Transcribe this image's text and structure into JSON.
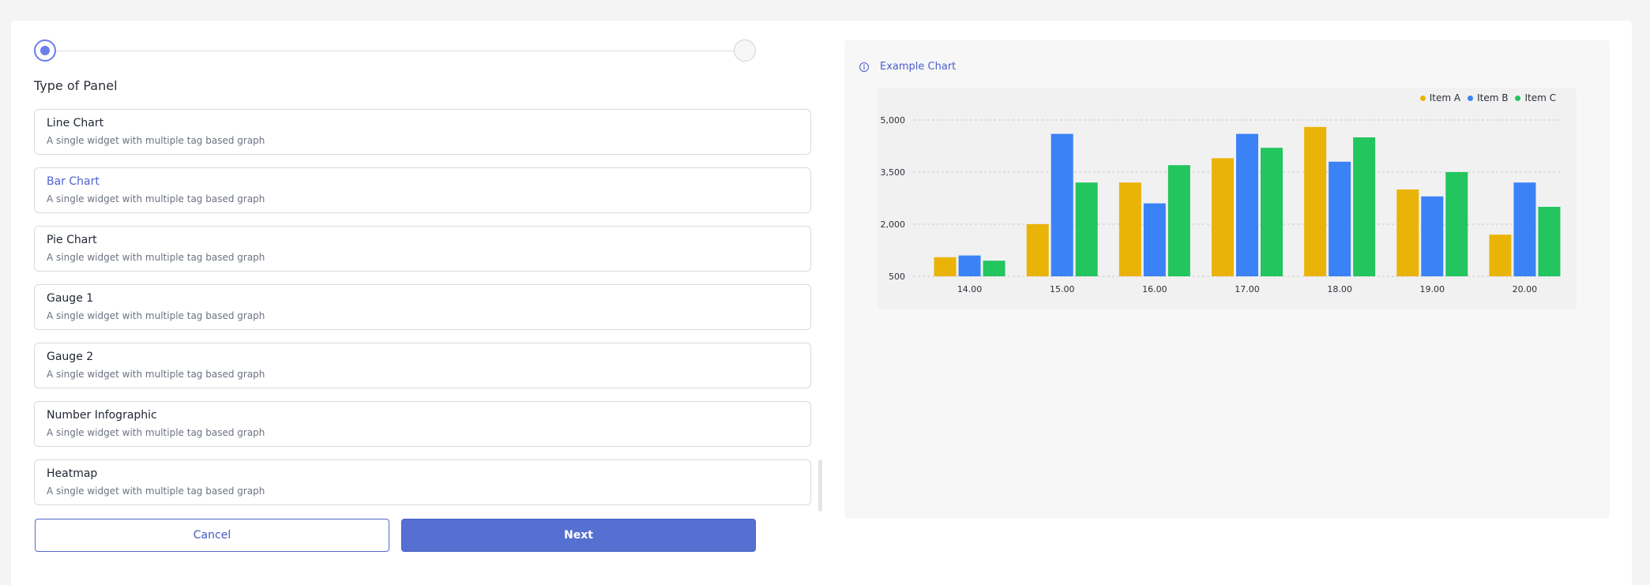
{
  "wizard": {
    "section_title": "Type of Panel",
    "panel_types": [
      {
        "title": "Line Chart",
        "description": "A single widget with multiple tag based graph",
        "selected": false
      },
      {
        "title": "Bar Chart",
        "description": "A single widget with multiple tag based graph",
        "selected": true
      },
      {
        "title": "Pie Chart",
        "description": "A single widget with multiple tag based graph",
        "selected": false
      },
      {
        "title": "Gauge 1",
        "description": "A single widget with multiple tag based graph",
        "selected": false
      },
      {
        "title": "Gauge 2",
        "description": "A single widget with multiple tag based graph",
        "selected": false
      },
      {
        "title": "Number Infographic",
        "description": "A single widget with multiple tag based graph",
        "selected": false
      },
      {
        "title": "Heatmap",
        "description": "A single widget with multiple tag based graph",
        "selected": false
      }
    ],
    "cancel_label": "Cancel",
    "next_label": "Next"
  },
  "preview": {
    "title": "Example Chart"
  },
  "colors": {
    "item_a": "#EAB308",
    "item_b": "#3B82F6",
    "item_c": "#22C55E",
    "accent": "#5570D0"
  },
  "chart_data": {
    "type": "bar",
    "categories": [
      "14.00",
      "15.00",
      "16.00",
      "17.00",
      "18.00",
      "19.00",
      "20.00"
    ],
    "series": [
      {
        "name": "Item A",
        "values": [
          1050,
          2000,
          3200,
          3900,
          4800,
          3000,
          1700
        ]
      },
      {
        "name": "Item B",
        "values": [
          1100,
          4600,
          2600,
          4600,
          3800,
          2800,
          3200
        ]
      },
      {
        "name": "Item C",
        "values": [
          950,
          3200,
          3700,
          4200,
          4500,
          3500,
          2500
        ]
      }
    ],
    "yticks": [
      500,
      2000,
      3500,
      5000
    ],
    "ytick_labels": [
      "500",
      "2,000",
      "3,500",
      "5,000"
    ],
    "ylim": [
      500,
      5000
    ],
    "legend_position": "top-right",
    "grid": true
  }
}
